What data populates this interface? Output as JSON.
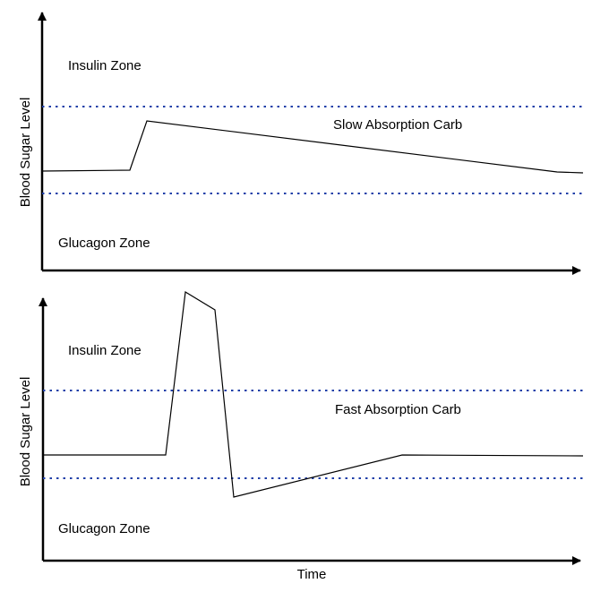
{
  "y_axis_label": "Blood Sugar Level",
  "x_axis_label": "Time",
  "line_color": "#000000",
  "threshold_color": "#1f3fa8",
  "panels": [
    {
      "curve_label": "Slow Absorption Carb",
      "upper_zone_label": "Insulin Zone",
      "lower_zone_label": "Glucagon Zone"
    },
    {
      "curve_label": "Fast Absorption Carb",
      "upper_zone_label": "Insulin Zone",
      "lower_zone_label": "Glucagon Zone"
    }
  ]
}
